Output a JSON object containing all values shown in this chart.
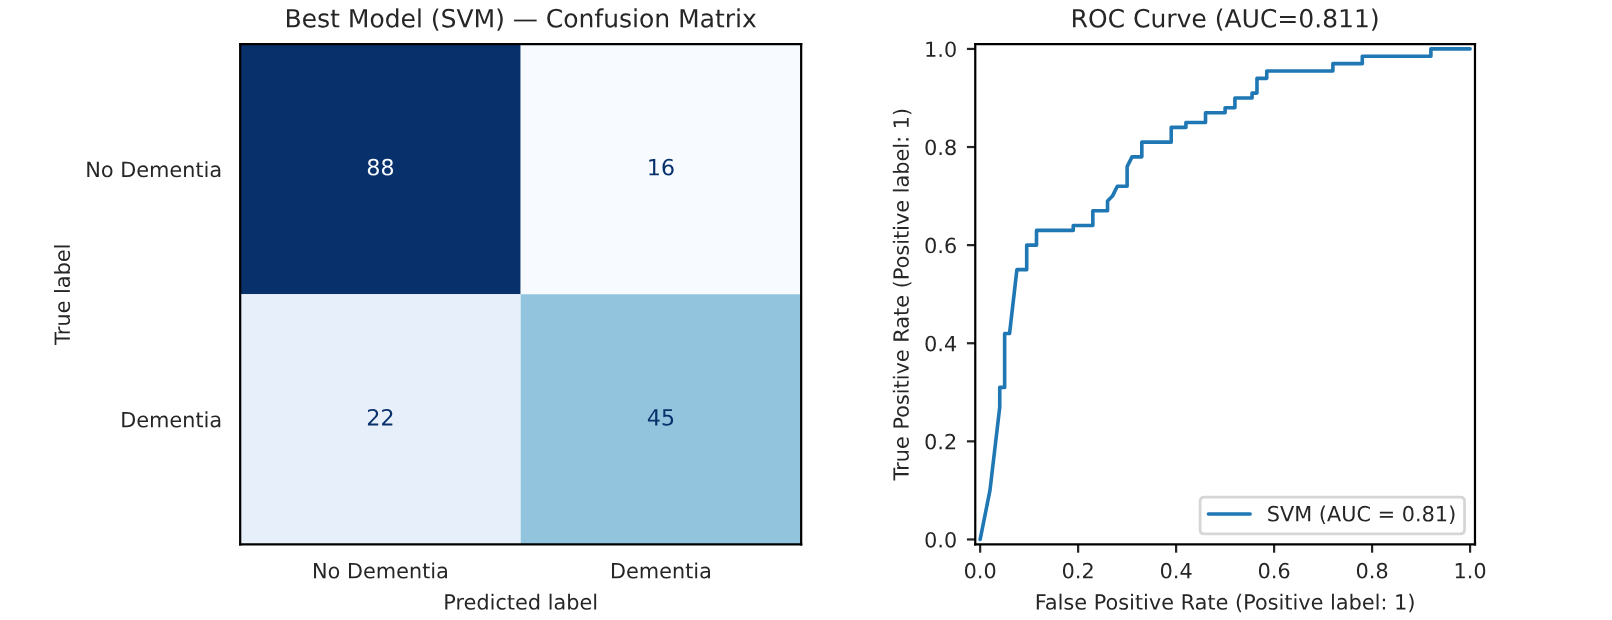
{
  "chart_data": [
    {
      "type": "heatmap",
      "title": "Best Model (SVM) — Confusion Matrix",
      "xlabel": "Predicted label",
      "ylabel": "True label",
      "categories": [
        "No Dementia",
        "Dementia"
      ],
      "y_categories": [
        "No Dementia",
        "Dementia"
      ],
      "cells": [
        [
          88,
          16
        ],
        [
          22,
          45
        ]
      ],
      "data_labels": true,
      "grid": false
    },
    {
      "type": "line",
      "title": "ROC Curve (AUC=0.811)",
      "xlabel": "False Positive Rate (Positive label: 1)",
      "ylabel": "True Positive Rate (Positive label: 1)",
      "xlim": [
        -0.01,
        1.01
      ],
      "ylim": [
        -0.01,
        1.01
      ],
      "xticks": [
        {
          "value": 0,
          "label": "0.0"
        },
        0.2,
        0.4,
        0.6,
        0.8,
        {
          "value": 1,
          "label": "1.0"
        }
      ],
      "yticks": [
        {
          "value": 0,
          "label": "0.0"
        },
        0.2,
        0.4,
        0.6,
        0.8,
        {
          "value": 1,
          "label": "1.0"
        }
      ],
      "grid": false,
      "legend": "bottom right",
      "series": [
        {
          "name": "SVM (AUC = 0.81)",
          "color": "#1f77b4",
          "x": [
            0,
            0.02,
            0.04,
            0.04,
            0.05,
            0.05,
            0.06,
            0.075,
            0.095,
            0.095,
            0.115,
            0.115,
            0.19,
            0.19,
            0.23,
            0.23,
            0.26,
            0.26,
            0.27,
            0.28,
            0.3,
            0.3,
            0.31,
            0.33,
            0.33,
            0.39,
            0.39,
            0.42,
            0.42,
            0.46,
            0.46,
            0.5,
            0.5,
            0.52,
            0.52,
            0.555,
            0.555,
            0.565,
            0.565,
            0.585,
            0.585,
            0.72,
            0.72,
            0.78,
            0.78,
            0.92,
            0.92,
            1.0
          ],
          "values": [
            0,
            0.1,
            0.27,
            0.31,
            0.31,
            0.42,
            0.42,
            0.55,
            0.55,
            0.6,
            0.6,
            0.63,
            0.63,
            0.64,
            0.64,
            0.67,
            0.67,
            0.69,
            0.7,
            0.72,
            0.72,
            0.76,
            0.78,
            0.78,
            0.81,
            0.81,
            0.84,
            0.84,
            0.85,
            0.85,
            0.87,
            0.87,
            0.88,
            0.88,
            0.9,
            0.9,
            0.91,
            0.91,
            0.94,
            0.94,
            0.955,
            0.955,
            0.97,
            0.97,
            0.985,
            0.985,
            1.0,
            1.0
          ]
        }
      ]
    }
  ]
}
